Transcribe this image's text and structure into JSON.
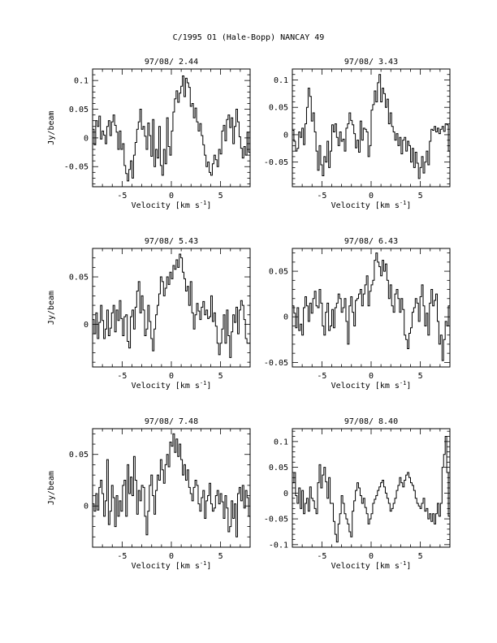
{
  "figure": {
    "title": "C/1995 O1 (Hale-Bopp)   NANCAY    49",
    "xlabel": "Velocity [km s",
    "xlabel_sup": "-1",
    "xlabel_close": "]",
    "ylabel": "Jy/beam"
  },
  "chart_data": [
    {
      "type": "line",
      "title": "97/08/ 2.44",
      "xlim": [
        -8,
        8
      ],
      "ylim": [
        -0.085,
        0.12
      ],
      "xticks": [
        -5,
        0,
        5
      ],
      "yticks": [
        -0.05,
        0,
        0.05,
        0.1
      ],
      "ytick_labels": [
        "-0.05",
        "0",
        "0.05",
        "0.1"
      ],
      "x_start": -8,
      "x_step": 0.16,
      "y": [
        0.015,
        -0.012,
        0.03,
        0.02,
        0.038,
        -0.002,
        0.012,
        0.005,
        -0.01,
        0.02,
        0.03,
        0.004,
        0.028,
        0.04,
        0.022,
        0.01,
        -0.02,
        0.012,
        -0.02,
        -0.01,
        -0.048,
        -0.062,
        -0.075,
        -0.055,
        -0.04,
        -0.07,
        -0.03,
        -0.008,
        0.015,
        0.028,
        0.05,
        0.015,
        0.02,
        0.003,
        -0.02,
        0.026,
        0.004,
        -0.032,
        0.032,
        -0.05,
        -0.02,
        -0.035,
        0.02,
        -0.048,
        -0.065,
        -0.02,
        -0.045,
        0.035,
        -0.015,
        -0.03,
        0.012,
        0.045,
        0.068,
        0.082,
        0.062,
        0.078,
        0.09,
        0.108,
        0.072,
        0.104,
        0.096,
        0.088,
        0.055,
        0.06,
        0.035,
        0.052,
        0.028,
        0.012,
        0.025,
        0.004,
        -0.012,
        -0.03,
        -0.05,
        -0.042,
        -0.06,
        -0.065,
        -0.045,
        -0.03,
        -0.038,
        -0.05,
        -0.02,
        -0.028,
        0.012,
        0.022,
        -0.005,
        0.032,
        0.04,
        0.018,
        0.035,
        -0.01,
        0.02,
        0.05,
        0.028,
        0.002,
        -0.018,
        -0.035,
        -0.015,
        -0.03,
        0.01,
        -0.025
      ]
    },
    {
      "type": "line",
      "title": "97/08/ 3.43",
      "xlim": [
        -8,
        8
      ],
      "ylim": [
        -0.095,
        0.12
      ],
      "xticks": [
        -5,
        0,
        5
      ],
      "yticks": [
        -0.05,
        0,
        0.05,
        0.1
      ],
      "ytick_labels": [
        "-0.05",
        "0",
        "0.05",
        "0.1"
      ],
      "x_start": -8,
      "x_step": 0.16,
      "y": [
        0.008,
        -0.012,
        -0.03,
        -0.025,
        0.005,
        -0.005,
        0.012,
        -0.018,
        0.02,
        0.05,
        0.085,
        0.07,
        0.025,
        0.04,
        0.005,
        -0.03,
        -0.065,
        -0.02,
        -0.055,
        -0.075,
        -0.04,
        -0.05,
        -0.012,
        -0.06,
        -0.03,
        0.018,
        0.005,
        0.02,
        -0.005,
        -0.02,
        0.005,
        -0.012,
        -0.008,
        -0.03,
        0.012,
        0.02,
        0.04,
        0.026,
        0.018,
        0.002,
        -0.024,
        -0.01,
        -0.032,
        0.025,
        -0.01,
        0.012,
        0.01,
        0.005,
        -0.04,
        -0.02,
        0.045,
        0.055,
        0.08,
        0.06,
        0.095,
        0.11,
        0.06,
        0.085,
        0.075,
        0.05,
        0.065,
        0.02,
        0.04,
        0.015,
        0.005,
        -0.01,
        0.002,
        -0.02,
        -0.005,
        -0.035,
        -0.01,
        -0.005,
        -0.03,
        -0.012,
        -0.02,
        -0.05,
        -0.025,
        -0.06,
        -0.032,
        -0.052,
        -0.08,
        -0.06,
        -0.04,
        -0.07,
        -0.05,
        -0.03,
        -0.055,
        -0.012,
        0.01,
        0.008,
        0.015,
        0.005,
        0.012,
        0.002,
        0.01,
        0.015,
        0.006,
        0.02,
        0.018,
        -0.03,
        0.04
      ]
    },
    {
      "type": "line",
      "title": "97/08/ 5.43",
      "xlim": [
        -8,
        8
      ],
      "ylim": [
        -0.045,
        0.08
      ],
      "xticks": [
        -5,
        0,
        5
      ],
      "yticks": [
        0,
        0.05
      ],
      "ytick_labels": [
        "0",
        "0.05"
      ],
      "x_start": -8,
      "x_step": 0.16,
      "y": [
        0.005,
        -0.01,
        0.012,
        -0.015,
        0.002,
        0.02,
        0.004,
        -0.015,
        -0.005,
        0.015,
        -0.012,
        -0.004,
        0.012,
        0.02,
        -0.008,
        0.015,
        0.004,
        0.025,
        0.006,
        -0.012,
        0.008,
        0.01,
        -0.018,
        -0.025,
        0.008,
        0.015,
        -0.005,
        0.018,
        0.035,
        0.045,
        0.012,
        0.03,
        0.015,
        -0.012,
        -0.005,
        0.02,
        0.003,
        -0.015,
        -0.028,
        -0.005,
        0.01,
        0.02,
        0.032,
        0.05,
        0.045,
        0.03,
        0.038,
        0.05,
        0.042,
        0.055,
        0.048,
        0.062,
        0.058,
        0.068,
        0.06,
        0.074,
        0.07,
        0.055,
        0.048,
        0.035,
        0.04,
        0.02,
        0.045,
        0.012,
        -0.005,
        0.01,
        0.022,
        0.014,
        0.005,
        0.018,
        0.024,
        0.01,
        0.015,
        0.006,
        0.008,
        0.03,
        0.003,
        0.012,
        -0.002,
        -0.02,
        -0.032,
        -0.02,
        -0.005,
        0.01,
        -0.02,
        0.015,
        -0.012,
        -0.035,
        -0.008,
        0.01,
        0.002,
        0.018,
        -0.01,
        0.015,
        0.025,
        0.02,
        0.005,
        -0.015,
        -0.02,
        -0.02
      ]
    },
    {
      "type": "line",
      "title": "97/08/ 6.43",
      "xlim": [
        -8,
        8
      ],
      "ylim": [
        -0.055,
        0.075
      ],
      "xticks": [
        -5,
        0,
        5
      ],
      "yticks": [
        -0.05,
        0,
        0.05
      ],
      "ytick_labels": [
        "-0.05",
        "0",
        "0.05"
      ],
      "x_start": -8,
      "x_step": 0.16,
      "y": [
        0.012,
        0.004,
        -0.012,
        0.01,
        -0.015,
        -0.008,
        -0.02,
        0.01,
        0.022,
        0.012,
        -0.005,
        0.015,
        0.004,
        0.02,
        0.028,
        0.012,
        0.01,
        0.03,
        0.015,
        -0.01,
        -0.02,
        0.005,
        0.015,
        -0.015,
        -0.01,
        0.008,
        -0.012,
        0.01,
        0.015,
        0.025,
        0.02,
        0.005,
        0.01,
        0.02,
        -0.005,
        -0.03,
        0.012,
        0.022,
        0.005,
        -0.01,
        0.018,
        0.02,
        0.025,
        0.03,
        0.012,
        0.025,
        0.035,
        0.045,
        0.012,
        0.028,
        0.035,
        0.04,
        0.062,
        0.07,
        0.06,
        0.055,
        0.045,
        0.062,
        0.05,
        0.058,
        0.04,
        0.02,
        0.035,
        0.012,
        0.005,
        0.025,
        0.03,
        0.02,
        0.005,
        0.02,
        0.008,
        -0.02,
        -0.025,
        -0.035,
        -0.018,
        -0.012,
        0.005,
        0.01,
        0.02,
        0.015,
        -0.005,
        0.022,
        0.035,
        0.012,
        -0.01,
        0.004,
        -0.02,
        0.015,
        0.03,
        0.012,
        0.018,
        0.025,
        -0.005,
        -0.03,
        -0.02,
        -0.048,
        -0.025,
        -0.005,
        -0.01,
        0.012,
        -0.01
      ]
    },
    {
      "type": "line",
      "title": "97/08/ 7.48",
      "xlim": [
        -8,
        8
      ],
      "ylim": [
        -0.04,
        0.075
      ],
      "xticks": [
        -5,
        0,
        5
      ],
      "yticks": [
        0,
        0.05
      ],
      "ytick_labels": [
        "0",
        "0.05"
      ],
      "x_start": -8,
      "x_step": 0.16,
      "y": [
        0.002,
        -0.005,
        0.012,
        -0.004,
        0.018,
        0.025,
        0.012,
        -0.01,
        0.005,
        0.045,
        -0.018,
        -0.005,
        0.02,
        0.008,
        -0.02,
        0.01,
        -0.01,
        0.005,
        -0.005,
        0.02,
        0.025,
        -0.01,
        0.04,
        0.012,
        0.028,
        0.01,
        0.048,
        0.025,
        -0.008,
        0.015,
        0.005,
        0.02,
        0.018,
        -0.01,
        -0.028,
        -0.005,
        0.02,
        0.03,
        0.01,
        -0.008,
        0.015,
        0.03,
        0.025,
        0.045,
        0.035,
        0.022,
        0.04,
        0.05,
        0.038,
        0.062,
        0.058,
        0.07,
        0.052,
        0.065,
        0.048,
        0.06,
        0.045,
        0.03,
        0.04,
        0.025,
        0.035,
        0.018,
        0.012,
        0.005,
        0.018,
        0.025,
        0.02,
        0.002,
        -0.005,
        0.008,
        0.015,
        -0.012,
        0.005,
        0.01,
        0.022,
        0.002,
        -0.005,
        -0.002,
        0.01,
        0.015,
        0.002,
        0.012,
        0.004,
        -0.012,
        0.01,
        -0.002,
        -0.025,
        -0.02,
        0.005,
        -0.012,
        0.002,
        -0.03,
        0.012,
        0.018,
        0.005,
        0.02,
        -0.002,
        0.015,
        0.008,
        -0.01
      ]
    },
    {
      "type": "line",
      "title": "97/08/ 8.40",
      "xlim": [
        -8,
        8
      ],
      "ylim": [
        -0.105,
        0.125
      ],
      "xticks": [
        -5,
        0,
        5
      ],
      "yticks": [
        -0.1,
        -0.05,
        0,
        0.05,
        0.1
      ],
      "ytick_labels": [
        "-0.1",
        "-0.05",
        "0",
        "0.05",
        "0.1"
      ],
      "x_start": -8,
      "x_step": 0.16,
      "y": [
        0.02,
        0.04,
        -0.005,
        -0.02,
        0.01,
        -0.03,
        0.005,
        -0.04,
        -0.02,
        -0.01,
        -0.035,
        0.012,
        -0.01,
        -0.015,
        -0.03,
        -0.04,
        0.02,
        0.055,
        0.01,
        0.035,
        0.05,
        0.022,
        -0.01,
        0.03,
        -0.02,
        -0.02,
        -0.055,
        -0.08,
        -0.095,
        -0.06,
        -0.04,
        -0.005,
        -0.02,
        -0.04,
        -0.05,
        -0.06,
        -0.075,
        -0.085,
        -0.035,
        -0.015,
        0.005,
        0.02,
        0.01,
        -0.005,
        -0.02,
        -0.01,
        -0.028,
        -0.04,
        -0.06,
        -0.05,
        -0.04,
        -0.02,
        -0.012,
        -0.005,
        0.005,
        0.012,
        0.02,
        0.025,
        0.012,
        0.0,
        -0.01,
        -0.02,
        -0.035,
        -0.03,
        -0.02,
        -0.01,
        0.005,
        0.015,
        0.03,
        0.02,
        0.012,
        0.025,
        0.035,
        0.04,
        0.03,
        0.02,
        0.015,
        0.005,
        -0.01,
        -0.02,
        -0.025,
        -0.03,
        -0.02,
        -0.01,
        -0.035,
        -0.03,
        -0.05,
        -0.04,
        -0.055,
        -0.04,
        -0.06,
        -0.04,
        -0.02,
        -0.045,
        -0.02,
        0.05,
        0.075,
        0.11,
        0.04,
        -0.045,
        -0.05
      ]
    }
  ]
}
